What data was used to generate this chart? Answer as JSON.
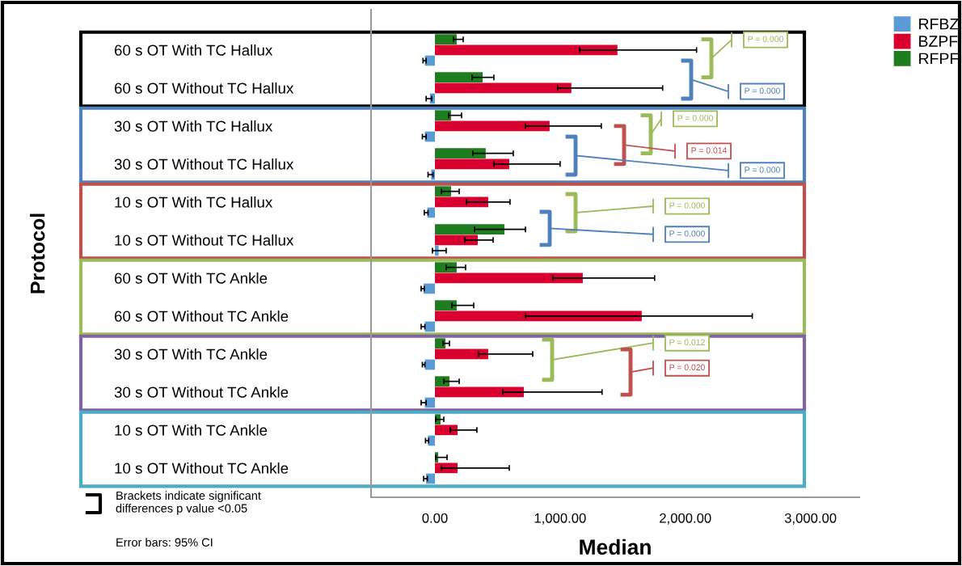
{
  "chart_data": {
    "type": "bar",
    "orientation": "horizontal",
    "categories": [
      "60 s OT With TC Hallux",
      "60 s OT Without TC Hallux",
      "30 s OT With TC Hallux",
      "30 s OT Without TC Hallux",
      "10 s OT With TC Hallux",
      "10 s OT Without TC Hallux",
      "60 s OT With TC Ankle",
      "60 s OT Without TC Ankle",
      "30 s OT With TC Ankle",
      "30 s OT Without TC Ankle",
      "10 s OT With TC Ankle",
      "10 s OT Without TC Ankle"
    ],
    "series": [
      {
        "name": "RFBZ",
        "color": "#5b9bd5",
        "values": [
          -80,
          -40,
          -80,
          -30,
          -60,
          30,
          -90,
          -80,
          -80,
          -80,
          -55,
          -70
        ],
        "errors": [
          [
            -95,
            -70
          ],
          [
            -70,
            -25
          ],
          [
            -100,
            -70
          ],
          [
            -55,
            -15
          ],
          [
            -85,
            -55
          ],
          [
            -20,
            90
          ],
          [
            -110,
            -85
          ],
          [
            -110,
            -80
          ],
          [
            -100,
            -80
          ],
          [
            -110,
            -70
          ],
          [
            -75,
            -50
          ],
          [
            -90,
            -60
          ]
        ]
      },
      {
        "name": "BZPF",
        "color": "#d9002f",
        "values": [
          1458,
          1090,
          916,
          594,
          426,
          342,
          1181,
          1652,
          426,
          710,
          181,
          181
        ],
        "errors": [
          [
            1155,
            2090
          ],
          [
            981,
            1819
          ],
          [
            723,
            1329
          ],
          [
            471,
            1000
          ],
          [
            252,
            600
          ],
          [
            239,
            465
          ],
          [
            942,
            1755
          ],
          [
            723,
            2535
          ],
          [
            348,
            781
          ],
          [
            542,
            1335
          ],
          [
            123,
            335
          ],
          [
            52,
            594
          ]
        ]
      },
      {
        "name": "RFPF",
        "color": "#1e7d1e",
        "values": [
          174,
          381,
          129,
          406,
          129,
          555,
          174,
          174,
          84,
          116,
          45,
          26
        ],
        "errors": [
          [
            148,
            226
          ],
          [
            297,
            471
          ],
          [
            110,
            213
          ],
          [
            303,
            626
          ],
          [
            52,
            194
          ],
          [
            316,
            723
          ],
          [
            90,
            245
          ],
          [
            135,
            310
          ],
          [
            65,
            116
          ],
          [
            71,
            194
          ],
          [
            6,
            71
          ],
          [
            6,
            97
          ]
        ]
      }
    ],
    "xlim": [
      -510,
      3390
    ],
    "xticks": [
      {
        "value": 0,
        "label": "0.00"
      },
      {
        "value": 1000,
        "label": "1,000.00"
      },
      {
        "value": 2000,
        "label": "2,000.00"
      },
      {
        "value": 3000,
        "label": "3,000.00"
      }
    ],
    "xlabel": "Median",
    "ylabel": "Protocol",
    "legend": "top right",
    "grid": false,
    "annotations": [
      "P = 0.000",
      "P = 0.000",
      "P = 0.000",
      "P = 0.014",
      "P = 0.000",
      "P = 0.000",
      "P = 0.000",
      "P = 0.012",
      "P = 0.020",
      "Brackets indicate significant\ndifferences p value <0.05",
      "Error bars: 95% CI"
    ]
  }
}
